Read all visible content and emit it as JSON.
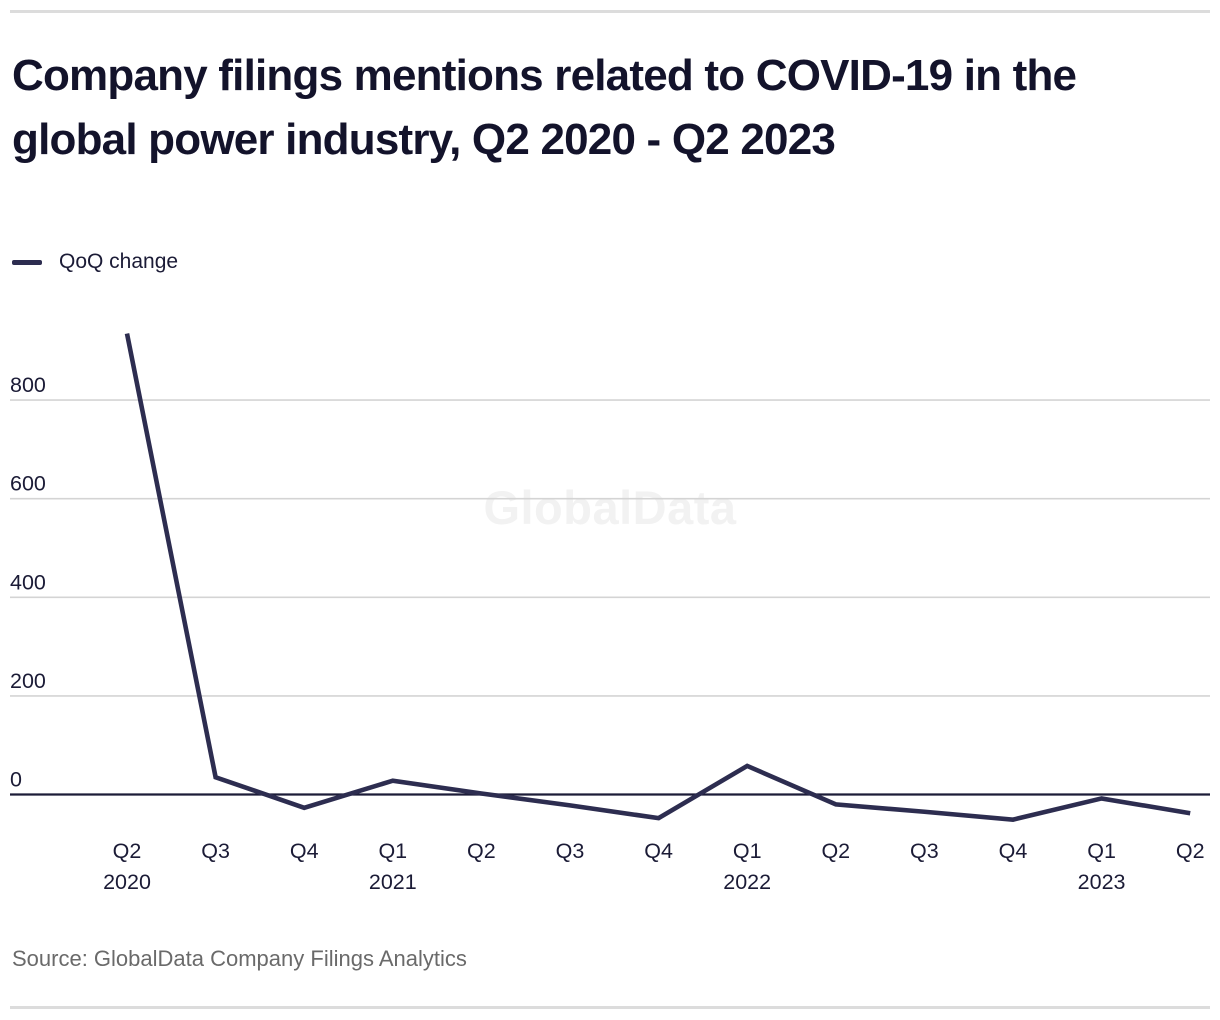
{
  "header": {
    "title": "Company filings mentions related to COVID-19 in the global power industry, Q2 2020 - Q2 2023"
  },
  "legend": {
    "label": "QoQ change"
  },
  "watermark": "GlobalData",
  "footer": {
    "source": "Source: GlobalData Company Filings Analytics"
  },
  "colors": {
    "accent_line": "#2d2d50",
    "title_text": "#13132b",
    "axis_text": "#1b1b36",
    "gridline": "#d4d4d4",
    "zero_line": "#1c1c38",
    "rule": "#dcdcdc",
    "source_text": "#6a6a6a",
    "watermark": "#f2f2f2"
  },
  "chart_data": {
    "type": "line",
    "title": "Company filings mentions related to COVID-19 in the global power industry, Q2 2020 - Q2 2023",
    "series": [
      {
        "name": "QoQ change",
        "color": "#2d2d50",
        "values": [
          935,
          35,
          -27,
          28,
          2,
          -22,
          -48,
          58,
          -20,
          -35,
          -51,
          -8,
          -38
        ]
      }
    ],
    "categories": [
      {
        "quarter": "Q2",
        "year": "2020"
      },
      {
        "quarter": "Q3"
      },
      {
        "quarter": "Q4"
      },
      {
        "quarter": "Q1",
        "year": "2021"
      },
      {
        "quarter": "Q2"
      },
      {
        "quarter": "Q3"
      },
      {
        "quarter": "Q4"
      },
      {
        "quarter": "Q1",
        "year": "2022"
      },
      {
        "quarter": "Q2"
      },
      {
        "quarter": "Q3"
      },
      {
        "quarter": "Q4"
      },
      {
        "quarter": "Q1",
        "year": "2023"
      },
      {
        "quarter": "Q2"
      }
    ],
    "yticks": [
      0,
      200,
      400,
      600,
      800
    ],
    "ylim": [
      -75,
      985
    ],
    "xlabel": "",
    "ylabel": "",
    "grid": "horizontal",
    "legend_position": "top-left",
    "zero_axis": true
  }
}
